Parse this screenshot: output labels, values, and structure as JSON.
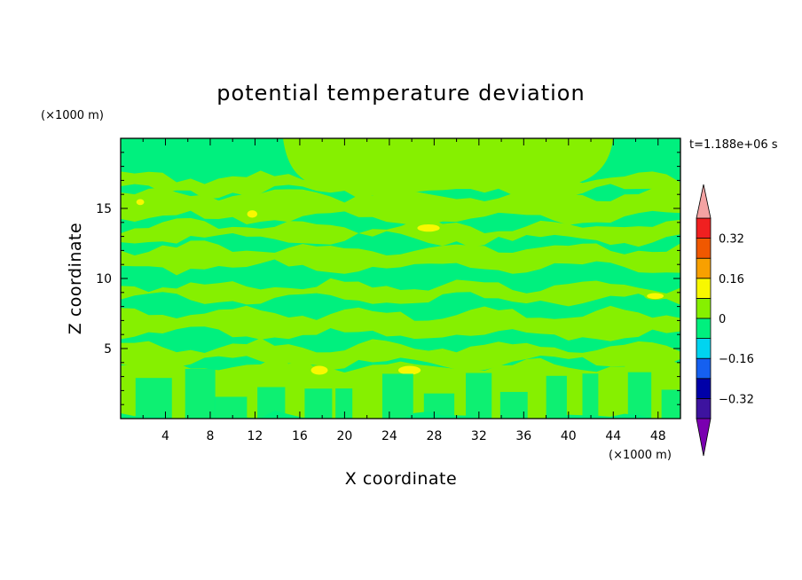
{
  "chart_data": {
    "type": "heatmap",
    "title": "potential temperature deviation",
    "xlabel": "X coordinate",
    "ylabel": "Z coordinate",
    "x_unit": "(×1000 m)",
    "y_unit": "(×1000 m)",
    "time_label": "t=1.188e+06 s",
    "xlim": [
      0,
      50
    ],
    "ylim": [
      0,
      20
    ],
    "x_ticks": [
      "4",
      "8",
      "12",
      "16",
      "20",
      "24",
      "28",
      "32",
      "36",
      "40",
      "44",
      "48"
    ],
    "y_ticks": [
      "5",
      "10",
      "15"
    ],
    "colorbar": {
      "levels": [
        -0.4,
        -0.32,
        -0.24,
        -0.16,
        -0.08,
        0,
        0.08,
        0.16,
        0.24,
        0.32,
        0.4
      ],
      "tick_labels": [
        "0.32",
        "0.16",
        "0",
        "−0.16",
        "−0.32"
      ],
      "colors": [
        "#3d139f",
        "#0000a8",
        "#1560f0",
        "#00d4f0",
        "#00f07e",
        "#86f000",
        "#f8f800",
        "#f8a000",
        "#f05800",
        "#f02020"
      ],
      "under_color": "#7a00b0",
      "over_color": "#f4a3a3",
      "background_color": "#00f07e"
    },
    "features": [
      {
        "kind": "band",
        "value": 0.04,
        "z": [
          0,
          3.8
        ],
        "note": "lower columns of small positive values"
      },
      {
        "kind": "band",
        "value": 0.04,
        "z": [
          4.0,
          5.2
        ]
      },
      {
        "kind": "band",
        "value": 0.04,
        "z": [
          6.0,
          7.5
        ]
      },
      {
        "kind": "band",
        "value": 0.04,
        "z": [
          8.5,
          9.5
        ]
      },
      {
        "kind": "band",
        "value": 0.04,
        "z": [
          10.8,
          12.2
        ]
      },
      {
        "kind": "band",
        "value": 0.04,
        "z": [
          12.8,
          13.8
        ]
      },
      {
        "kind": "band",
        "value": 0.04,
        "z": [
          14.3,
          16.0
        ]
      },
      {
        "kind": "band",
        "value": 0.04,
        "z": [
          16.2,
          17.2
        ]
      },
      {
        "kind": "cap",
        "value": 0.04,
        "x": [
          14.5,
          44
        ],
        "z": [
          16.5,
          20
        ]
      },
      {
        "kind": "patch",
        "value": 0.12,
        "x": [
          26.5,
          28.5
        ],
        "z": [
          13.4,
          13.8
        ]
      },
      {
        "kind": "patch",
        "value": 0.12,
        "x": [
          11.3,
          12.2
        ],
        "z": [
          14.4,
          14.8
        ]
      },
      {
        "kind": "patch",
        "value": 0.12,
        "x": [
          1.4,
          2.1
        ],
        "z": [
          15.3,
          15.6
        ]
      },
      {
        "kind": "patch",
        "value": 0.12,
        "x": [
          47.0,
          48.5
        ],
        "z": [
          8.6,
          8.9
        ]
      },
      {
        "kind": "patch",
        "value": 0.12,
        "x": [
          17.0,
          18.5
        ],
        "z": [
          3.2,
          3.7
        ]
      },
      {
        "kind": "patch",
        "value": 0.12,
        "x": [
          24.8,
          26.8
        ],
        "z": [
          3.2,
          3.7
        ]
      }
    ]
  }
}
